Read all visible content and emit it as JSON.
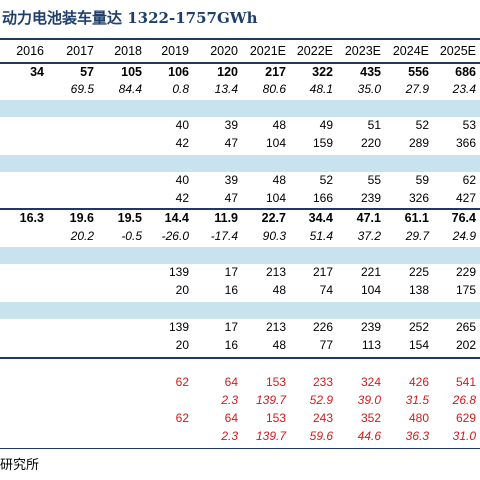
{
  "title": "动力电池装车量达 1322-1757GWh",
  "years": [
    "2016",
    "2017",
    "2018",
    "2019",
    "2020",
    "2021E",
    "2022E",
    "2023E",
    "2024E",
    "2025E"
  ],
  "rows": [
    {
      "style": "bold",
      "cells": [
        "34",
        "57",
        "105",
        "106",
        "120",
        "217",
        "322",
        "435",
        "556",
        "686"
      ]
    },
    {
      "style": "ital",
      "cells": [
        "",
        "69.5",
        "84.4",
        "0.8",
        "13.4",
        "80.6",
        "48.1",
        "35.0",
        "27.9",
        "23.4"
      ]
    },
    {
      "style": "plain",
      "cells": [
        "",
        "",
        "",
        "40",
        "39",
        "48",
        "49",
        "51",
        "52",
        "53"
      ]
    },
    {
      "style": "plain",
      "cells": [
        "",
        "",
        "",
        "42",
        "47",
        "104",
        "159",
        "220",
        "289",
        "366"
      ]
    },
    {
      "style": "plain",
      "cells": [
        "",
        "",
        "",
        "40",
        "39",
        "48",
        "52",
        "55",
        "59",
        "62"
      ]
    },
    {
      "style": "plain",
      "cells": [
        "",
        "",
        "",
        "42",
        "47",
        "104",
        "166",
        "239",
        "326",
        "427"
      ]
    },
    {
      "style": "bold",
      "cells": [
        "16.3",
        "19.6",
        "19.5",
        "14.4",
        "11.9",
        "22.7",
        "34.4",
        "47.1",
        "61.1",
        "76.4"
      ]
    },
    {
      "style": "ital",
      "cells": [
        "",
        "20.2",
        "-0.5",
        "-26.0",
        "-17.4",
        "90.3",
        "51.4",
        "37.2",
        "29.7",
        "24.9"
      ]
    },
    {
      "style": "plain",
      "cells": [
        "",
        "",
        "",
        "139",
        "17",
        "213",
        "217",
        "221",
        "225",
        "229"
      ]
    },
    {
      "style": "plain",
      "cells": [
        "",
        "",
        "",
        "20",
        "16",
        "48",
        "74",
        "104",
        "138",
        "175"
      ]
    },
    {
      "style": "plain",
      "cells": [
        "",
        "",
        "",
        "139",
        "17",
        "213",
        "226",
        "239",
        "252",
        "265"
      ]
    },
    {
      "style": "plain",
      "cells": [
        "",
        "",
        "",
        "20",
        "16",
        "48",
        "77",
        "113",
        "154",
        "202"
      ]
    },
    {
      "style": "red",
      "cells": [
        "",
        "",
        "",
        "62",
        "64",
        "153",
        "233",
        "324",
        "426",
        "541"
      ]
    },
    {
      "style": "redital",
      "cells": [
        "",
        "",
        "",
        "",
        "2.3",
        "139.7",
        "52.9",
        "39.0",
        "31.5",
        "26.8"
      ]
    },
    {
      "style": "red",
      "cells": [
        "",
        "",
        "",
        "62",
        "64",
        "153",
        "243",
        "352",
        "480",
        "629"
      ]
    },
    {
      "style": "redital",
      "cells": [
        "",
        "",
        "",
        "",
        "2.3",
        "139.7",
        "59.6",
        "44.6",
        "36.3",
        "31.0"
      ]
    }
  ],
  "source": "研究所"
}
